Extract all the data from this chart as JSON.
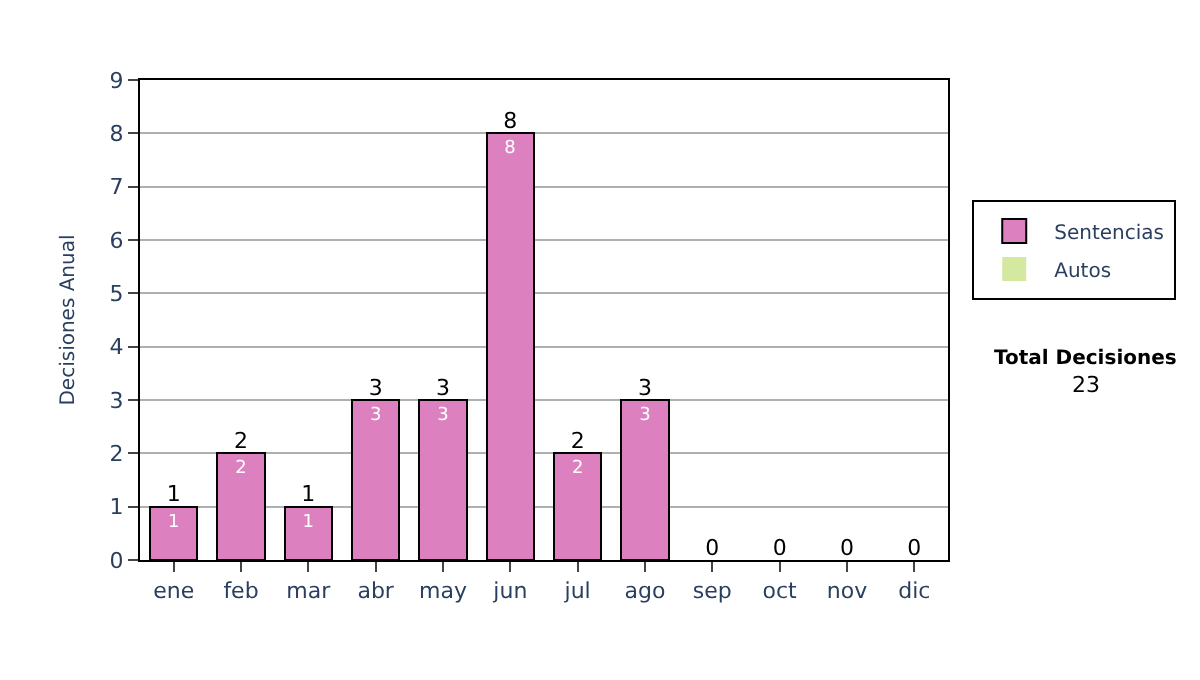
{
  "chart_data": {
    "type": "bar",
    "stacked": true,
    "ylabel": "Decisiones Anual",
    "categories": [
      "ene",
      "feb",
      "mar",
      "abr",
      "may",
      "jun",
      "jul",
      "ago",
      "sep",
      "oct",
      "nov",
      "dic"
    ],
    "series": [
      {
        "name": "Sentencias",
        "color": "#dd80c0",
        "values": [
          1,
          2,
          1,
          3,
          3,
          8,
          2,
          3,
          0,
          0,
          0,
          0
        ],
        "value_labels": [
          "1",
          "2",
          "1",
          "3",
          "3",
          "8",
          "2",
          "3",
          null,
          null,
          null,
          null
        ]
      },
      {
        "name": "Autos",
        "color": "#d4e8a0",
        "values": [
          0,
          0,
          0,
          0,
          0,
          0,
          0,
          0,
          0,
          0,
          0,
          0
        ]
      }
    ],
    "totals": [
      "1",
      "2",
      "1",
      "3",
      "3",
      "8",
      "2",
      "3",
      "0",
      "0",
      "0",
      "0"
    ],
    "ylim": [
      0,
      9
    ],
    "yticks": [
      0,
      1,
      2,
      3,
      4,
      5,
      6,
      7,
      8,
      9
    ],
    "grid": "y",
    "legend": "right",
    "annotations": [
      "Total Decisiones",
      "23"
    ]
  }
}
